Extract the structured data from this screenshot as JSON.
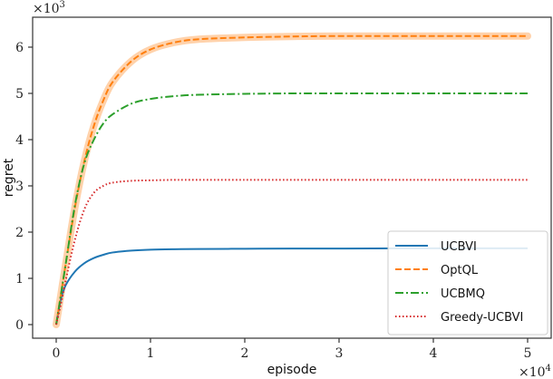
{
  "chart_data": {
    "type": "line",
    "title": "",
    "xlabel": "episode",
    "ylabel": "regret",
    "x_scale_label": "×10^4",
    "y_scale_label": "×10^3",
    "x_ticks": [
      "0",
      "1",
      "2",
      "3",
      "4",
      "5"
    ],
    "y_ticks": [
      "0",
      "1",
      "2",
      "3",
      "4",
      "5",
      "6"
    ],
    "xlim": [
      -0.25,
      5.25
    ],
    "ylim": [
      -0.3,
      6.65
    ],
    "grid": false,
    "legend_position": "lower right",
    "x": [
      0,
      0.05,
      0.1,
      0.2,
      0.3,
      0.4,
      0.5,
      0.6,
      0.8,
      1.0,
      1.25,
      1.5,
      2.0,
      2.5,
      3.0,
      4.0,
      5.0
    ],
    "series": [
      {
        "name": "UCBVI",
        "color": "#1f77b4",
        "style": "solid",
        "values": [
          0,
          0.55,
          0.85,
          1.15,
          1.33,
          1.44,
          1.51,
          1.56,
          1.6,
          1.62,
          1.63,
          1.635,
          1.64,
          1.645,
          1.645,
          1.65,
          1.65
        ]
      },
      {
        "name": "OptQL",
        "color": "#ff7f0e",
        "style": "dashed",
        "band": true,
        "values": [
          0,
          0.65,
          1.3,
          2.55,
          3.55,
          4.3,
          4.85,
          5.25,
          5.7,
          5.95,
          6.1,
          6.17,
          6.21,
          6.23,
          6.24,
          6.24,
          6.24
        ]
      },
      {
        "name": "UCBMQ",
        "color": "#2ca02c",
        "style": "dashdot",
        "values": [
          0,
          0.65,
          1.3,
          2.6,
          3.5,
          4.0,
          4.35,
          4.55,
          4.78,
          4.88,
          4.94,
          4.97,
          4.99,
          5.0,
          5.0,
          5.0,
          5.0
        ]
      },
      {
        "name": "Greedy-UCBVI",
        "color": "#d62728",
        "style": "dotted",
        "values": [
          0,
          0.45,
          0.95,
          1.85,
          2.5,
          2.85,
          3.0,
          3.07,
          3.11,
          3.12,
          3.13,
          3.13,
          3.13,
          3.13,
          3.13,
          3.13,
          3.13
        ]
      }
    ]
  },
  "legend": {
    "items": [
      "UCBVI",
      "OptQL",
      "UCBMQ",
      "Greedy-UCBVI"
    ]
  },
  "axes": {
    "xlabel": "episode",
    "ylabel": "regret",
    "x_multiplier": "×10",
    "x_multiplier_exp": "4",
    "y_multiplier": "×10",
    "y_multiplier_exp": "3"
  }
}
